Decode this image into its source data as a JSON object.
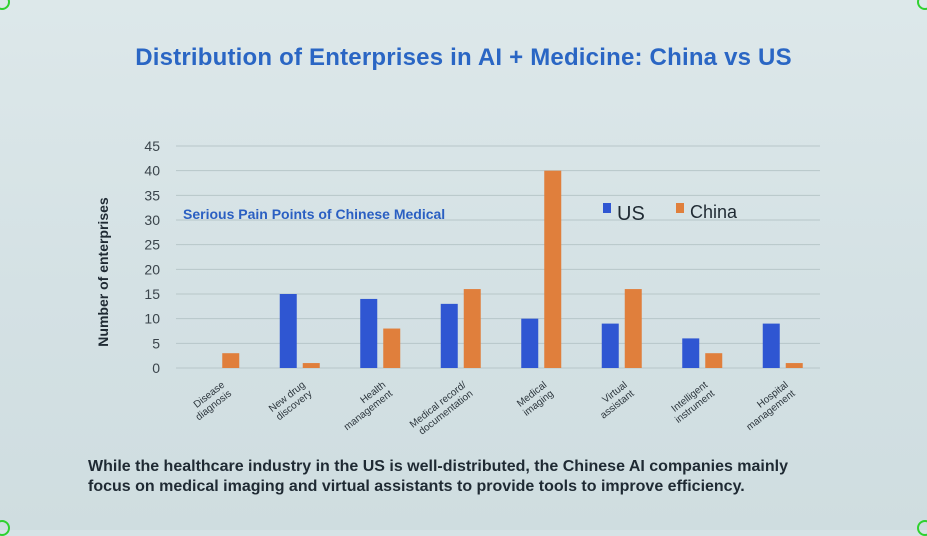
{
  "slide": {
    "title": "Distribution of Enterprises in AI + Medicine: China vs US",
    "caption_line1": "While the healthcare industry in the US is well-distributed, the Chinese AI companies mainly",
    "caption_line2": "focus on medical imaging and virtual assistants to provide tools to improve efficiency."
  },
  "chart_data": {
    "type": "bar",
    "title": "Distribution of Enterprises in AI + Medicine: China vs US",
    "annotation": "Serious Pain Points of Chinese Medical",
    "ylabel": "Number of enterprises",
    "xlabel": "",
    "ylim": [
      0,
      45
    ],
    "yticks": [
      0,
      5,
      10,
      15,
      20,
      25,
      30,
      35,
      40,
      45
    ],
    "grid": true,
    "legend_position": "top-right",
    "categories": [
      [
        "Disease",
        "diagnosis"
      ],
      [
        "New drug",
        "discovery"
      ],
      [
        "Health",
        "management"
      ],
      [
        "Medical record/",
        "documentation"
      ],
      [
        "Medical",
        "imaging"
      ],
      [
        "Virtual",
        "assistant"
      ],
      [
        "Intelligent",
        "instrument"
      ],
      [
        "Hospital",
        "management"
      ]
    ],
    "series": [
      {
        "name": "US",
        "color": "#2f56d2",
        "values": [
          0,
          15,
          14,
          13,
          10,
          9,
          6,
          9
        ]
      },
      {
        "name": "China",
        "color": "#e07f3c",
        "values": [
          3,
          1,
          8,
          16,
          40,
          16,
          3,
          1
        ]
      }
    ]
  }
}
